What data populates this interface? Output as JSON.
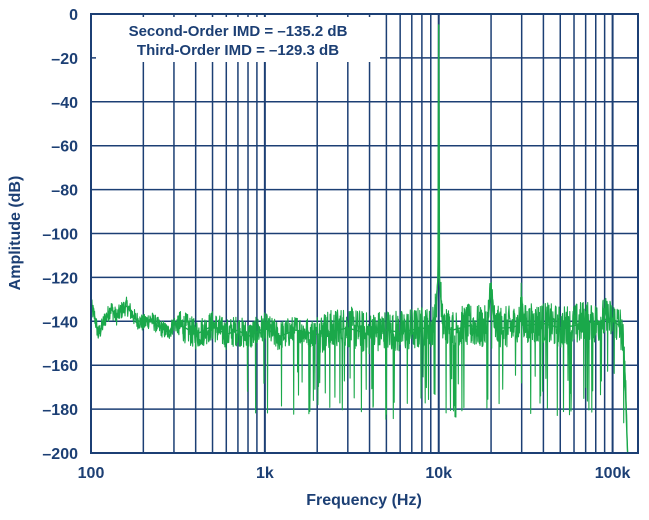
{
  "chart_data": {
    "type": "line",
    "xlabel": "Frequency (Hz)",
    "ylabel": "Amplitude (dB)",
    "x_scale": "log",
    "xlim": [
      100,
      140000
    ],
    "ylim": [
      -200,
      0
    ],
    "x_ticks": [
      {
        "value": 100,
        "label": "100"
      },
      {
        "value": 1000,
        "label": "1k"
      },
      {
        "value": 10000,
        "label": "10k"
      },
      {
        "value": 100000,
        "label": "100k"
      }
    ],
    "y_ticks": [
      {
        "value": 0,
        "label": "0"
      },
      {
        "value": -20,
        "label": "–20"
      },
      {
        "value": -40,
        "label": "–40"
      },
      {
        "value": -60,
        "label": "–60"
      },
      {
        "value": -80,
        "label": "–80"
      },
      {
        "value": -100,
        "label": "–100"
      },
      {
        "value": -120,
        "label": "–120"
      },
      {
        "value": -140,
        "label": "–140"
      },
      {
        "value": -160,
        "label": "–160"
      },
      {
        "value": -180,
        "label": "–180"
      },
      {
        "value": -200,
        "label": "–200"
      }
    ],
    "grid": true,
    "annotations": [
      "Second-Order IMD = –135.2 dB",
      "Third-Order IMD = –129.3 dB"
    ],
    "series": [
      {
        "color": "#1aa84a",
        "noise_floor_db": -145,
        "x": [
          100,
          105,
          110,
          115,
          120,
          125,
          130,
          140,
          150,
          160,
          170,
          180,
          200,
          220,
          250,
          280,
          300,
          350,
          400,
          450,
          500,
          600,
          700,
          800,
          1000,
          1200,
          1500,
          2000,
          3000,
          4000,
          5000,
          6000,
          8000,
          9000,
          9500,
          9900,
          10000,
          10100,
          10500,
          11000,
          12000,
          15000,
          19000,
          20000,
          21000,
          25000,
          29000,
          30000,
          31000,
          40000,
          50000,
          60000,
          70000,
          80000,
          90000,
          100000,
          105000,
          110000,
          115000,
          118000,
          120000,
          122000
        ],
        "y": [
          -133,
          -138,
          -146,
          -143,
          -139,
          -137,
          -134,
          -138,
          -135,
          -133,
          -136,
          -139,
          -141,
          -139,
          -143,
          -145,
          -141,
          -143,
          -146,
          -144,
          -142,
          -146,
          -144,
          -147,
          -143,
          -147,
          -144,
          -146,
          -143,
          -146,
          -144,
          -145,
          -143,
          -144,
          -140,
          -120,
          -5,
          -120,
          -141,
          -143,
          -144,
          -142,
          -143,
          -125,
          -143,
          -143,
          -142,
          -130,
          -142,
          -141,
          -143,
          -142,
          -140,
          -141,
          -139,
          -140,
          -141,
          -142,
          -150,
          -165,
          -185,
          -200
        ]
      }
    ]
  }
}
